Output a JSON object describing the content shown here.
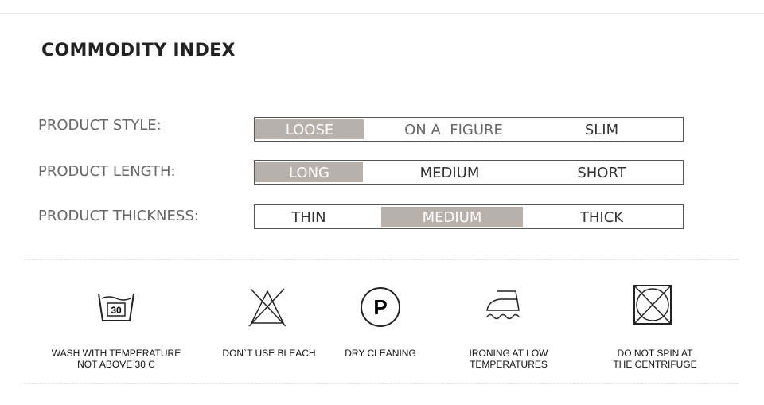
{
  "title": "COMMODITY INDEX",
  "rows": [
    {
      "label": "PRODUCT STYLE:",
      "options": [
        "LOOSE",
        "ON A  FIGURE",
        "SLIM"
      ],
      "selected": "LOOSE"
    },
    {
      "label": "PRODUCT LENGTH:",
      "options": [
        "LONG",
        "MEDIUM",
        "SHORT"
      ],
      "selected": "LONG"
    },
    {
      "label": "PRODUCT THICKNESS:",
      "options": [
        "THIN",
        "MEDIUM",
        "THICK"
      ],
      "selected": "MEDIUM"
    }
  ],
  "highlight_color": "#b7b0ab",
  "care": [
    {
      "icon": "wash-30-icon",
      "line1": "WASH WITH TEMPERATURE",
      "line2": "NOT ABOVE 30 C",
      "temp": "30"
    },
    {
      "icon": "no-bleach-icon",
      "line1": "DON`T USE BLEACH",
      "line2": ""
    },
    {
      "icon": "dry-clean-icon",
      "line1": "DRY CLEANING",
      "line2": "",
      "letter": "P"
    },
    {
      "icon": "iron-low-icon",
      "line1": "IRONING AT LOW",
      "line2": "TEMPERATURES"
    },
    {
      "icon": "no-tumble-icon",
      "line1": "DO NOT SPIN AT",
      "line2": "THE CENTRIFUGE"
    }
  ]
}
